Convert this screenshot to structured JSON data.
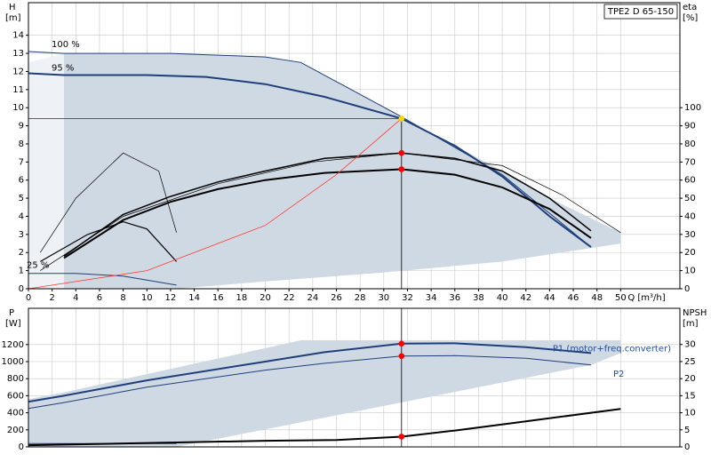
{
  "chart_data": [
    {
      "type": "line",
      "title": "TPE2 D 65-150",
      "ylabel": "H",
      "yunit": "[m]",
      "y2label": "eta",
      "y2unit": "[%]",
      "xlabel": "Q [m³/h]",
      "xlim": [
        0,
        55
      ],
      "ylim": [
        0,
        15.8
      ],
      "y2lim": [
        0,
        158
      ],
      "xticks": [
        0,
        2,
        4,
        6,
        8,
        10,
        12,
        14,
        16,
        18,
        20,
        22,
        24,
        26,
        28,
        30,
        32,
        34,
        36,
        38,
        40,
        42,
        44,
        46,
        48,
        50
      ],
      "yticks": [
        0,
        1,
        2,
        3,
        4,
        5,
        6,
        7,
        8,
        9,
        10,
        11,
        12,
        13,
        14
      ],
      "y2ticks": [
        0,
        10,
        20,
        30,
        40,
        50,
        60,
        70,
        80,
        90,
        100
      ],
      "grid": true,
      "series": [
        {
          "style": "area",
          "color": "#eef2f6",
          "x": [
            0,
            0,
            3,
            3
          ],
          "values": [
            0,
            12.5,
            13.0,
            0
          ]
        },
        {
          "style": "area",
          "color": "#cfd9e3",
          "x": [
            3,
            3,
            12,
            20,
            23,
            31.5,
            40,
            44,
            50,
            50,
            40,
            30,
            20,
            12.5
          ],
          "values": [
            0,
            13.0,
            13.0,
            12.8,
            12.5,
            9.5,
            6.5,
            5.0,
            3.1,
            2.5,
            1.5,
            0.9,
            0.4,
            0
          ]
        },
        {
          "style": "line",
          "name": "100 %",
          "color": "#1f3f7a",
          "width": 1,
          "x": [
            0,
            3,
            12,
            20,
            23,
            31.5,
            40,
            47.5
          ],
          "values": [
            13.1,
            13.0,
            13.0,
            12.8,
            12.5,
            9.5,
            6.3,
            2.3
          ]
        },
        {
          "style": "line",
          "name": "95 %",
          "color": "#1f3f7a",
          "width": 2,
          "x": [
            0,
            3,
            10,
            15,
            20,
            25,
            31.5,
            36,
            40,
            44,
            47.5
          ],
          "values": [
            11.9,
            11.8,
            11.8,
            11.7,
            11.3,
            10.6,
            9.4,
            7.9,
            6.2,
            4.0,
            2.3
          ]
        },
        {
          "style": "line",
          "name": "25 %",
          "color": "#1f3f7a",
          "width": 1,
          "x": [
            0,
            4,
            8,
            12.5
          ],
          "values": [
            0.85,
            0.85,
            0.7,
            0.2
          ]
        },
        {
          "style": "line",
          "color": "#000000",
          "width": 2,
          "axis": "y2",
          "x": [
            3,
            8,
            12,
            16,
            20,
            25,
            31.5,
            36,
            40,
            44,
            47.5
          ],
          "values": [
            17,
            38,
            48,
            55,
            60,
            64,
            66,
            63,
            56,
            44,
            28
          ]
        },
        {
          "style": "line",
          "color": "#000000",
          "width": 1.5,
          "axis": "y2",
          "x": [
            3,
            8,
            12,
            16,
            20,
            25,
            31.5,
            36,
            40,
            44,
            47.5
          ],
          "values": [
            18,
            41,
            51,
            59,
            65,
            72,
            75,
            72,
            65,
            50,
            32
          ]
        },
        {
          "style": "line",
          "color": "#000000",
          "width": 0.7,
          "axis": "y2",
          "x": [
            1,
            8,
            16,
            24,
            31.5,
            40,
            45,
            50
          ],
          "values": [
            10,
            40,
            58,
            70,
            75,
            68,
            52,
            31
          ]
        },
        {
          "style": "line",
          "color": "#000000",
          "width": 1.2,
          "axis": "y2",
          "x": [
            1,
            5,
            8,
            10,
            12.5
          ],
          "values": [
            15,
            30,
            37,
            33,
            15
          ]
        },
        {
          "style": "line",
          "color": "#000000",
          "width": 0.7,
          "axis": "y2",
          "x": [
            1,
            4,
            8,
            11,
            12.5
          ],
          "values": [
            20,
            50,
            75,
            65,
            31
          ]
        },
        {
          "style": "line",
          "color": "#ff3b30",
          "width": 0.8,
          "x": [
            0,
            10,
            20,
            26,
            31.5
          ],
          "values": [
            0,
            1.0,
            3.5,
            6.3,
            9.4
          ]
        },
        {
          "style": "line",
          "color": "#333333",
          "width": 0.8,
          "x": [
            0,
            31.5
          ],
          "values": [
            9.4,
            9.4
          ]
        },
        {
          "style": "line",
          "color": "#000000",
          "width": 0.8,
          "x": [
            31.5,
            31.5
          ],
          "values": [
            0,
            9.4
          ]
        },
        {
          "style": "points",
          "color": "#ffd400",
          "x": [
            31.5
          ],
          "values": [
            9.4
          ]
        },
        {
          "style": "points",
          "color": "#ff0000",
          "axis": "y2",
          "x": [
            31.5,
            31.5
          ],
          "values": [
            75,
            66
          ]
        }
      ]
    },
    {
      "type": "line",
      "ylabel": "P",
      "yunit": "[W]",
      "y2label": "NPSH",
      "y2unit": "[m]",
      "xlim": [
        0,
        55
      ],
      "ylim": [
        0,
        1625
      ],
      "y2lim": [
        0,
        40.6
      ],
      "xticks": [
        0,
        2,
        4,
        6,
        8,
        10,
        12,
        14,
        16,
        18,
        20,
        22,
        24,
        26,
        28,
        30,
        32,
        34,
        36,
        38,
        40,
        42,
        44,
        46,
        48,
        50
      ],
      "yticks": [
        0,
        200,
        400,
        600,
        800,
        1000,
        1200
      ],
      "y2ticks": [
        0,
        5,
        10,
        15,
        20,
        25,
        30
      ],
      "grid": true,
      "series": [
        {
          "style": "area",
          "color": "#cfd9e3",
          "x": [
            0,
            3,
            23,
            50,
            50,
            47.5,
            12.5,
            0
          ],
          "values": [
            560,
            640,
            1250,
            1250,
            1100,
            960,
            0,
            0
          ]
        },
        {
          "style": "line",
          "name": "P1 (motor+freq.converter)",
          "color": "#1f3f7a",
          "width": 2,
          "x": [
            0,
            3,
            10,
            20,
            25,
            31.5,
            36,
            42,
            47.5
          ],
          "values": [
            530,
            600,
            780,
            1000,
            1110,
            1210,
            1215,
            1170,
            1100
          ]
        },
        {
          "style": "line",
          "name": "P2",
          "color": "#1f3f7a",
          "width": 1,
          "x": [
            0,
            3,
            10,
            20,
            25,
            31.5,
            36,
            42,
            47.5
          ],
          "values": [
            450,
            520,
            700,
            900,
            980,
            1065,
            1070,
            1040,
            960
          ]
        },
        {
          "style": "line",
          "color": "#1f3f7a",
          "width": 1,
          "x": [
            0,
            12.5
          ],
          "values": [
            40,
            40
          ]
        },
        {
          "style": "line",
          "color": "#000000",
          "width": 2,
          "axis": "y2",
          "x": [
            0,
            12.5,
            20,
            26,
            31.5,
            36,
            42,
            50
          ],
          "values": [
            0.5,
            1.3,
            1.8,
            2.0,
            3.0,
            4.8,
            7.5,
            11.1
          ]
        },
        {
          "style": "line",
          "color": "#000000",
          "width": 0.8,
          "x": [
            31.5,
            31.5
          ],
          "values": [
            0,
            1625
          ]
        },
        {
          "style": "points",
          "color": "#ff0000",
          "x": [
            31.5,
            31.5
          ],
          "values": [
            1210,
            1065
          ]
        },
        {
          "style": "points",
          "color": "#ff0000",
          "axis": "y2",
          "x": [
            31.5
          ],
          "values": [
            3.0
          ]
        }
      ]
    }
  ]
}
